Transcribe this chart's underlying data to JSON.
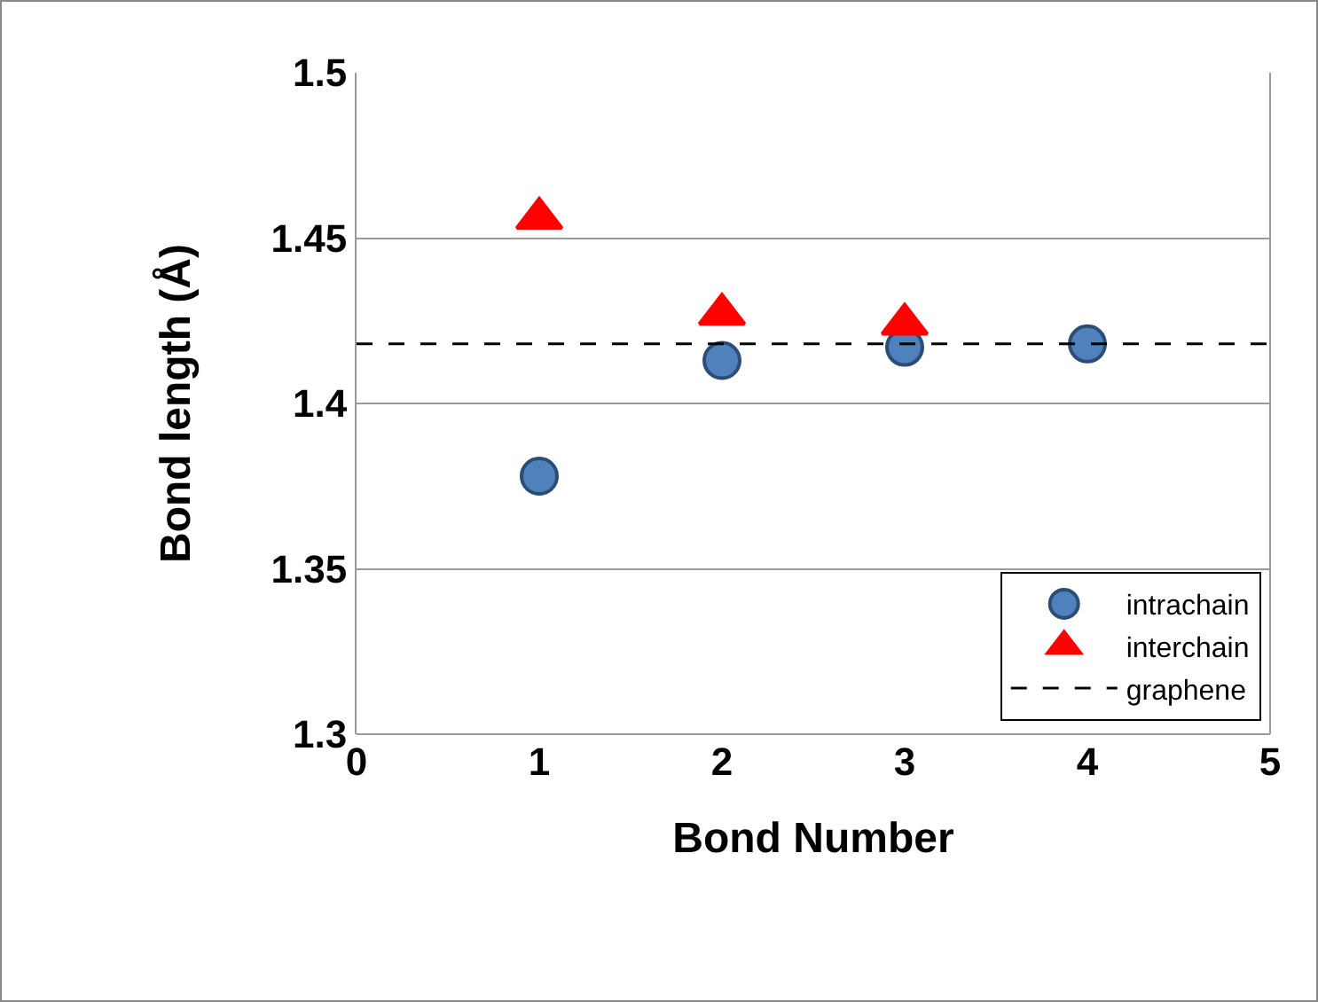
{
  "chart_data": {
    "type": "scatter",
    "xlabel": "Bond Number",
    "ylabel": "Bond length (Å)",
    "series": [
      {
        "name": "intrachain",
        "color": "#4f81bd",
        "marker": "circle",
        "x": [
          1,
          2,
          3,
          4
        ],
        "values": [
          1.378,
          1.413,
          1.417,
          1.418
        ]
      },
      {
        "name": "interchain",
        "color": "#ff0000",
        "marker": "triangle",
        "x": [
          1,
          2,
          3
        ],
        "values": [
          1.456,
          1.427,
          1.424
        ]
      }
    ],
    "ref_lines": [
      {
        "axis": "y",
        "value": 1.418,
        "label": "graphene",
        "color": "#000000",
        "line_style": "dashed"
      }
    ],
    "xlim": [
      0,
      5
    ],
    "xticks": [
      0,
      1,
      2,
      3,
      4,
      5
    ],
    "ylim": [
      1.3,
      1.5
    ],
    "yticks": [
      1.3,
      1.35,
      1.4,
      1.45,
      1.5
    ],
    "grid": "y",
    "legend": "bottom right"
  }
}
